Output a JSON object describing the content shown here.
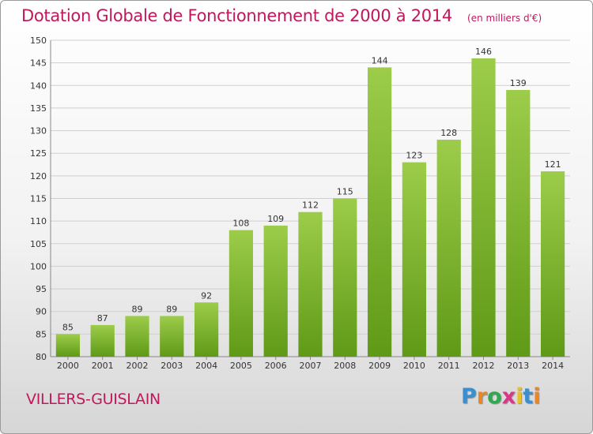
{
  "header": {
    "title": "Dotation Globale de Fonctionnement de 2000 à 2014",
    "unit": "(en milliers d'€)"
  },
  "footer": {
    "commune": "VILLERS-GUISLAIN",
    "logo_text": "Proxiti"
  },
  "colors": {
    "title": "#c0185b",
    "bar_top": "#9ccc4a",
    "bar_bottom": "#5f9a16",
    "grid": "#cfcfcf",
    "logo_letters": [
      "#3a8fd0",
      "#e8872a",
      "#2fa84f",
      "#d9368a",
      "#e8c12a",
      "#3a8fd0",
      "#e8872a"
    ]
  },
  "chart_data": {
    "type": "bar",
    "title": "Dotation Globale de Fonctionnement de 2000 à 2014",
    "subtitle": "(en milliers d'€)",
    "xlabel": "",
    "ylabel": "",
    "categories": [
      "2000",
      "2001",
      "2002",
      "2003",
      "2004",
      "2005",
      "2006",
      "2007",
      "2008",
      "2009",
      "2010",
      "2011",
      "2012",
      "2013",
      "2014"
    ],
    "values": [
      85,
      87,
      89,
      89,
      92,
      108,
      109,
      112,
      115,
      144,
      123,
      128,
      146,
      139,
      121
    ],
    "ylim": [
      80,
      150
    ],
    "yticks": [
      80,
      85,
      90,
      95,
      100,
      105,
      110,
      115,
      120,
      125,
      130,
      135,
      140,
      145,
      150
    ],
    "grid": true,
    "legend": "none"
  }
}
